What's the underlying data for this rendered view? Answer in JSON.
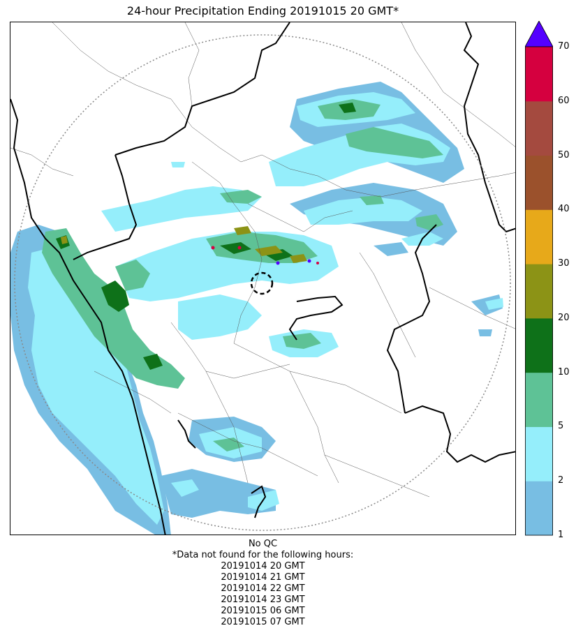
{
  "title": "24-hour Precipitation Ending 20191015 20 GMT*",
  "colorbar": {
    "ticks": [
      "1",
      "2",
      "5",
      "10",
      "20",
      "30",
      "40",
      "50",
      "60",
      "70"
    ],
    "colors": [
      "#78bee3",
      "#95eefb",
      "#5ec296",
      "#0e7119",
      "#8c9316",
      "#e7a91a",
      "#9b512c",
      "#a44a3f",
      "#d5003f"
    ],
    "extend_color": "#5400ff",
    "units_scale": [
      1,
      2,
      5,
      10,
      20,
      30,
      40,
      50,
      60,
      70
    ]
  },
  "footer": {
    "qc": "No QC",
    "note": "*Data not found for the following hours:",
    "hours": [
      "20191014 20 GMT",
      "20191014 21 GMT",
      "20191014 22 GMT",
      "20191014 23 GMT",
      "20191015 06 GMT",
      "20191015 07 GMT"
    ]
  }
}
